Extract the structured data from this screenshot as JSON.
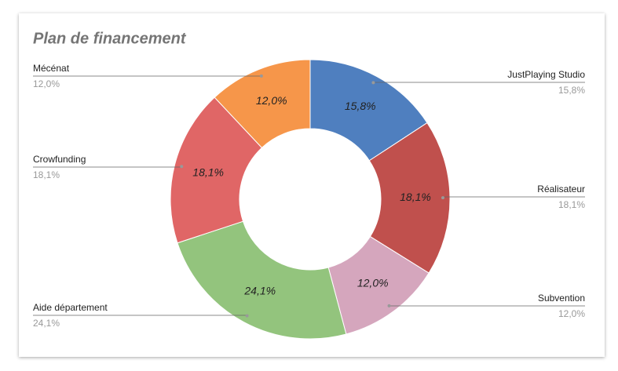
{
  "chart_data": {
    "type": "donut",
    "title": "Plan de financement",
    "categories": [
      "JustPlaying Studio",
      "Réalisateur",
      "Subvention",
      "Aide département",
      "Crowfunding",
      "Mécénat"
    ],
    "values": [
      15.8,
      18.1,
      12.0,
      24.1,
      18.1,
      12.0
    ],
    "value_labels": [
      "15,8%",
      "18,1%",
      "12,0%",
      "24,1%",
      "18,1%",
      "12,0%"
    ],
    "colors": [
      "#4f7fbf",
      "#c0504d",
      "#d5a6bd",
      "#93c47d",
      "#e06666",
      "#f6964a"
    ]
  }
}
